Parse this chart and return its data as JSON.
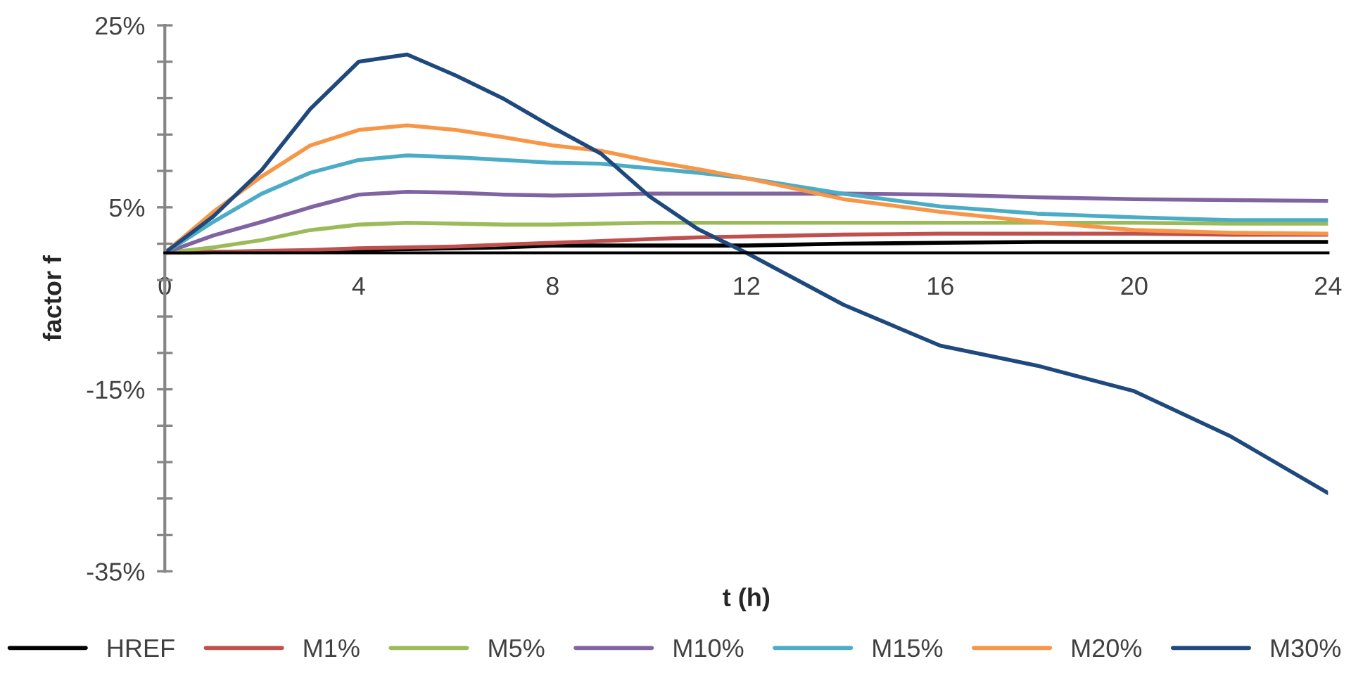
{
  "chart_data": {
    "type": "line",
    "xlabel": "t (h)",
    "ylabel": "factor f",
    "x": [
      0,
      1,
      2,
      3,
      4,
      5,
      6,
      7,
      8,
      9,
      10,
      11,
      12,
      14,
      16,
      18,
      20,
      22,
      24
    ],
    "series": [
      {
        "name": "HREF",
        "color": "#000000",
        "values": [
          0,
          0.1,
          0.1,
          0.2,
          0.3,
          0.4,
          0.5,
          0.6,
          0.8,
          0.8,
          0.8,
          0.8,
          0.8,
          1.0,
          1.1,
          1.2,
          1.2,
          1.2,
          1.2
        ]
      },
      {
        "name": "M1%",
        "color": "#c0504d",
        "values": [
          0,
          0.1,
          0.2,
          0.3,
          0.5,
          0.6,
          0.7,
          0.9,
          1.1,
          1.3,
          1.5,
          1.7,
          1.8,
          2.0,
          2.1,
          2.1,
          2.1,
          2.0,
          2.0
        ]
      },
      {
        "name": "M5%",
        "color": "#9bbb59",
        "values": [
          0,
          0.6,
          1.4,
          2.5,
          3.1,
          3.3,
          3.2,
          3.1,
          3.1,
          3.2,
          3.3,
          3.3,
          3.3,
          3.3,
          3.3,
          3.3,
          3.3,
          3.2,
          3.2
        ]
      },
      {
        "name": "M10%",
        "color": "#8064a2",
        "values": [
          0,
          1.9,
          3.4,
          5.0,
          6.4,
          6.7,
          6.6,
          6.4,
          6.3,
          6.4,
          6.5,
          6.5,
          6.5,
          6.5,
          6.4,
          6.1,
          5.9,
          5.8,
          5.7
        ]
      },
      {
        "name": "M15%",
        "color": "#4bacc6",
        "values": [
          0,
          3.4,
          6.5,
          8.8,
          10.2,
          10.7,
          10.5,
          10.2,
          9.9,
          9.8,
          9.3,
          8.8,
          8.2,
          6.5,
          5.1,
          4.3,
          3.9,
          3.6,
          3.6
        ]
      },
      {
        "name": "M20%",
        "color": "#f79646",
        "values": [
          0,
          4.5,
          8.4,
          11.8,
          13.5,
          14.0,
          13.5,
          12.7,
          11.8,
          11.2,
          10.1,
          9.2,
          8.2,
          5.9,
          4.5,
          3.4,
          2.5,
          2.2,
          2.1
        ]
      },
      {
        "name": "M30%",
        "color": "#1f497d",
        "values": [
          0,
          4.0,
          9.1,
          15.8,
          21.0,
          21.8,
          19.5,
          16.9,
          13.8,
          10.9,
          6.2,
          2.6,
          0,
          -5.7,
          -10.2,
          -12.4,
          -15.2,
          -20.2,
          -26.4
        ]
      }
    ],
    "xlim": [
      0,
      24
    ],
    "xticks": [
      0,
      4,
      8,
      12,
      16,
      20,
      24
    ],
    "ylim": [
      -35,
      25
    ],
    "yticks": [
      {
        "value": 25,
        "label": "25%"
      },
      {
        "value": 21,
        "label": null
      },
      {
        "value": 17,
        "label": null
      },
      {
        "value": 13,
        "label": null
      },
      {
        "value": 9,
        "label": null
      },
      {
        "value": 5,
        "label": "5%"
      },
      {
        "value": 1,
        "label": null
      },
      {
        "value": -3,
        "label": null
      },
      {
        "value": -7,
        "label": null
      },
      {
        "value": -11,
        "label": null
      },
      {
        "value": -15,
        "label": "-15%"
      },
      {
        "value": -19,
        "label": null
      },
      {
        "value": -23,
        "label": null
      },
      {
        "value": -27,
        "label": null
      },
      {
        "value": -31,
        "label": null
      },
      {
        "value": -35,
        "label": "-35%"
      }
    ],
    "grid": false,
    "legend": "bottom",
    "marker": "none",
    "line_style": "solid"
  }
}
